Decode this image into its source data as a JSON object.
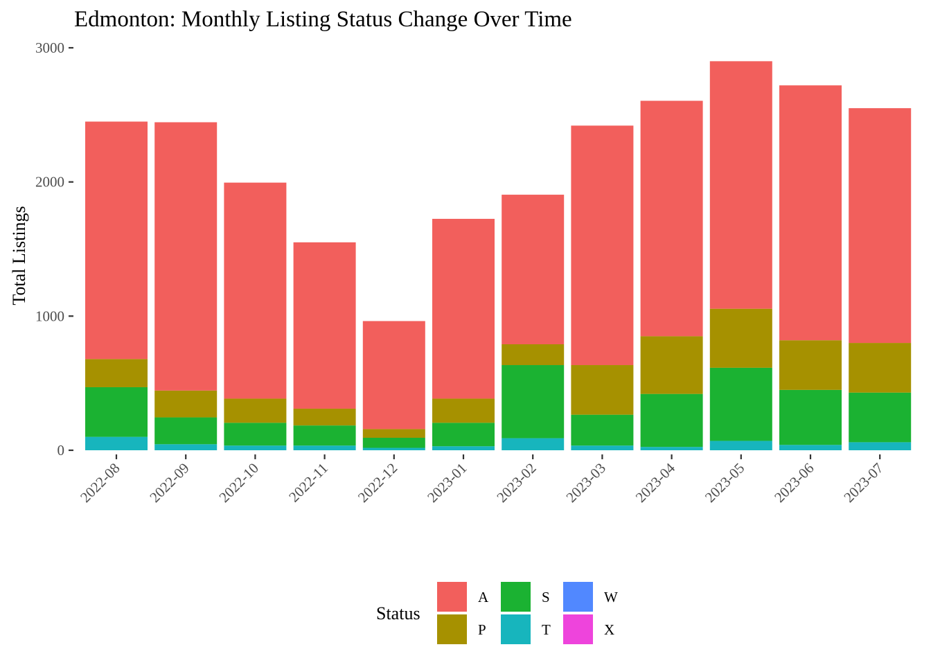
{
  "chart_data": {
    "type": "bar",
    "stacked": true,
    "title": "Edmonton: Monthly Listing Status Change Over Time",
    "xlabel": "",
    "ylabel": "Total Listings",
    "ylim": [
      0,
      3000
    ],
    "yticks": [
      "0",
      "1000",
      "2000",
      "3000"
    ],
    "grid": false,
    "legend_title": "Status",
    "legend_position": "bottom",
    "categories": [
      "2022-08",
      "2022-09",
      "2022-10",
      "2022-11",
      "2022-12",
      "2023-01",
      "2023-02",
      "2023-03",
      "2023-04",
      "2023-05",
      "2023-06",
      "2023-07"
    ],
    "series": [
      {
        "name": "T",
        "color": "#17b5bd",
        "values": [
          100,
          45,
          35,
          35,
          18,
          30,
          90,
          35,
          25,
          70,
          40,
          60
        ]
      },
      {
        "name": "S",
        "color": "#1bb232",
        "values": [
          370,
          200,
          170,
          150,
          75,
          175,
          545,
          230,
          395,
          545,
          410,
          370
        ]
      },
      {
        "name": "P",
        "color": "#a69100",
        "values": [
          210,
          200,
          180,
          125,
          65,
          180,
          155,
          370,
          430,
          440,
          370,
          370
        ]
      },
      {
        "name": "A",
        "color": "#f25f5c",
        "values": [
          1770,
          2000,
          1610,
          1240,
          805,
          1340,
          1115,
          1785,
          1755,
          1845,
          1900,
          1750
        ]
      },
      {
        "name": "W",
        "color": "#5188ff",
        "values": [
          0,
          0,
          0,
          0,
          0,
          0,
          0,
          0,
          0,
          0,
          0,
          0
        ]
      },
      {
        "name": "X",
        "color": "#ee44dc",
        "values": [
          0,
          0,
          0,
          0,
          0,
          0,
          0,
          0,
          0,
          0,
          0,
          0
        ]
      }
    ],
    "legend": [
      {
        "name": "A",
        "color": "#f25f5c"
      },
      {
        "name": "P",
        "color": "#a69100"
      },
      {
        "name": "S",
        "color": "#1bb232"
      },
      {
        "name": "T",
        "color": "#17b5bd"
      },
      {
        "name": "W",
        "color": "#5188ff"
      },
      {
        "name": "X",
        "color": "#ee44dc"
      }
    ]
  }
}
